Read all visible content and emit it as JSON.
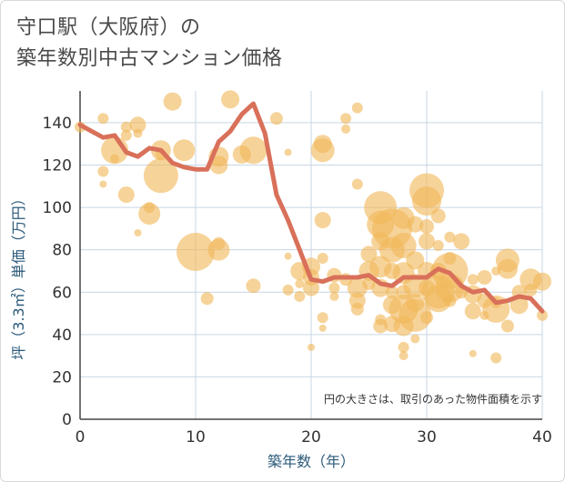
{
  "title": {
    "line1": "守口駅（大阪府）の",
    "line2": "築年数別中古マンション価格"
  },
  "chart_data": {
    "type": "scatter",
    "xlabel": "築年数（年）",
    "ylabel": "坪（3.3㎡）単価（万円）",
    "xlim": [
      0,
      40
    ],
    "ylim": [
      0,
      155
    ],
    "xticks": [
      0,
      10,
      20,
      30,
      40
    ],
    "yticks": [
      0,
      20,
      40,
      60,
      80,
      100,
      120,
      140
    ],
    "grid": true,
    "note": "円の大きさは、取引のあった物件面積を示す",
    "colors": {
      "bubble": "#f0b85a",
      "line": "#d9705a",
      "grid": "#c9d6e3"
    },
    "series": [
      {
        "type": "line",
        "points": [
          [
            0,
            139
          ],
          [
            1,
            136
          ],
          [
            2,
            133
          ],
          [
            3,
            134
          ],
          [
            4,
            126
          ],
          [
            5,
            124
          ],
          [
            6,
            128
          ],
          [
            7,
            127
          ],
          [
            8,
            121
          ],
          [
            9,
            119
          ],
          [
            10,
            118
          ],
          [
            11,
            118
          ],
          [
            12,
            131
          ],
          [
            13,
            136
          ],
          [
            14,
            144
          ],
          [
            15,
            149
          ],
          [
            16,
            135
          ],
          [
            17,
            106
          ],
          [
            18,
            94
          ],
          [
            19,
            80
          ],
          [
            20,
            66
          ],
          [
            21,
            65
          ],
          [
            22,
            67
          ],
          [
            23,
            67
          ],
          [
            24,
            67
          ],
          [
            25,
            68
          ],
          [
            26,
            64
          ],
          [
            27,
            63
          ],
          [
            28,
            67
          ],
          [
            29,
            67
          ],
          [
            30,
            67
          ],
          [
            31,
            71
          ],
          [
            32,
            69
          ],
          [
            33,
            63
          ],
          [
            34,
            60
          ],
          [
            35,
            61
          ],
          [
            36,
            55
          ],
          [
            37,
            56
          ],
          [
            38,
            58
          ],
          [
            39,
            57
          ],
          [
            40,
            51
          ]
        ]
      },
      {
        "type": "bubble",
        "points": [
          [
            0,
            138,
            6
          ],
          [
            2,
            142,
            6
          ],
          [
            2,
            117,
            6
          ],
          [
            2,
            111,
            4
          ],
          [
            3,
            127,
            15
          ],
          [
            3,
            123,
            5
          ],
          [
            4,
            138,
            6
          ],
          [
            4,
            134,
            6
          ],
          [
            5,
            139,
            9
          ],
          [
            5,
            135,
            5
          ],
          [
            4,
            106,
            9
          ],
          [
            5,
            88,
            4
          ],
          [
            6,
            100,
            6
          ],
          [
            6,
            97,
            12
          ],
          [
            7,
            127,
            11
          ],
          [
            7,
            115,
            19
          ],
          [
            7,
            125,
            6
          ],
          [
            8,
            150,
            10
          ],
          [
            9,
            127,
            12
          ],
          [
            10,
            79,
            21
          ],
          [
            11,
            57,
            7
          ],
          [
            12,
            120,
            10
          ],
          [
            12,
            124,
            11
          ],
          [
            12,
            80,
            12
          ],
          [
            12,
            83,
            7
          ],
          [
            13,
            151,
            10
          ],
          [
            14,
            125,
            10
          ],
          [
            15,
            127,
            15
          ],
          [
            15,
            63,
            8
          ],
          [
            17,
            142,
            7
          ],
          [
            18,
            126,
            4
          ],
          [
            18,
            77,
            4
          ],
          [
            18,
            61,
            6
          ],
          [
            19,
            70,
            10
          ],
          [
            19,
            64,
            5
          ],
          [
            19,
            58,
            6
          ],
          [
            20,
            72,
            10
          ],
          [
            20,
            67,
            9
          ],
          [
            20,
            62,
            9
          ],
          [
            20,
            34,
            4
          ],
          [
            21,
            130,
            10
          ],
          [
            21,
            127,
            13
          ],
          [
            21,
            94,
            9
          ],
          [
            21,
            76,
            6
          ],
          [
            21,
            48,
            6
          ],
          [
            21,
            43,
            4
          ],
          [
            22,
            68,
            8
          ],
          [
            22,
            62,
            6
          ],
          [
            22,
            58,
            5
          ],
          [
            23,
            142,
            6
          ],
          [
            23,
            137,
            5
          ],
          [
            23,
            66,
            7
          ],
          [
            24,
            147,
            6
          ],
          [
            24,
            111,
            6
          ],
          [
            24,
            62,
            11
          ],
          [
            24,
            56,
            9
          ],
          [
            24,
            52,
            7
          ],
          [
            25,
            78,
            9
          ],
          [
            25,
            70,
            11
          ],
          [
            25,
            64,
            7
          ],
          [
            26,
            100,
            18
          ],
          [
            26,
            92,
            15
          ],
          [
            26,
            84,
            10
          ],
          [
            26,
            72,
            12
          ],
          [
            26,
            62,
            10
          ],
          [
            26,
            47,
            6
          ],
          [
            26,
            44,
            8
          ],
          [
            27,
            90,
            22
          ],
          [
            27,
            80,
            14
          ],
          [
            27,
            70,
            9
          ],
          [
            27,
            60,
            7
          ],
          [
            27,
            54,
            10
          ],
          [
            27,
            45,
            9
          ],
          [
            28,
            95,
            12
          ],
          [
            28,
            82,
            14
          ],
          [
            28,
            69,
            12
          ],
          [
            28,
            60,
            8
          ],
          [
            28,
            52,
            16
          ],
          [
            28,
            44,
            11
          ],
          [
            28,
            34,
            6
          ],
          [
            28,
            30,
            5
          ],
          [
            29,
            92,
            9
          ],
          [
            29,
            75,
            10
          ],
          [
            29,
            63,
            13
          ],
          [
            29,
            55,
            10
          ],
          [
            29,
            49,
            18
          ],
          [
            29,
            38,
            5
          ],
          [
            30,
            108,
            19
          ],
          [
            30,
            103,
            16
          ],
          [
            30,
            91,
            8
          ],
          [
            30,
            84,
            9
          ],
          [
            30,
            70,
            10
          ],
          [
            30,
            62,
            9
          ],
          [
            30,
            48,
            7
          ],
          [
            31,
            96,
            8
          ],
          [
            31,
            82,
            6
          ],
          [
            31,
            70,
            9
          ],
          [
            31,
            60,
            18
          ],
          [
            31,
            57,
            15
          ],
          [
            32,
            86,
            6
          ],
          [
            32,
            76,
            7
          ],
          [
            32,
            70,
            20
          ],
          [
            32,
            62,
            16
          ],
          [
            32,
            56,
            7
          ],
          [
            33,
            84,
            9
          ],
          [
            33,
            60,
            7
          ],
          [
            34,
            66,
            6
          ],
          [
            34,
            59,
            10
          ],
          [
            34,
            51,
            9
          ],
          [
            34,
            31,
            4
          ],
          [
            35,
            67,
            8
          ],
          [
            35,
            56,
            8
          ],
          [
            35,
            49,
            5
          ],
          [
            36,
            70,
            5
          ],
          [
            36,
            55,
            6
          ],
          [
            36,
            52,
            15
          ],
          [
            36,
            29,
            6
          ],
          [
            37,
            75,
            13
          ],
          [
            37,
            71,
            11
          ],
          [
            37,
            44,
            7
          ],
          [
            38,
            60,
            8
          ],
          [
            38,
            54,
            10
          ],
          [
            39,
            66,
            12
          ],
          [
            39,
            61,
            7
          ],
          [
            40,
            65,
            10
          ],
          [
            40,
            49,
            6
          ]
        ]
      }
    ]
  }
}
